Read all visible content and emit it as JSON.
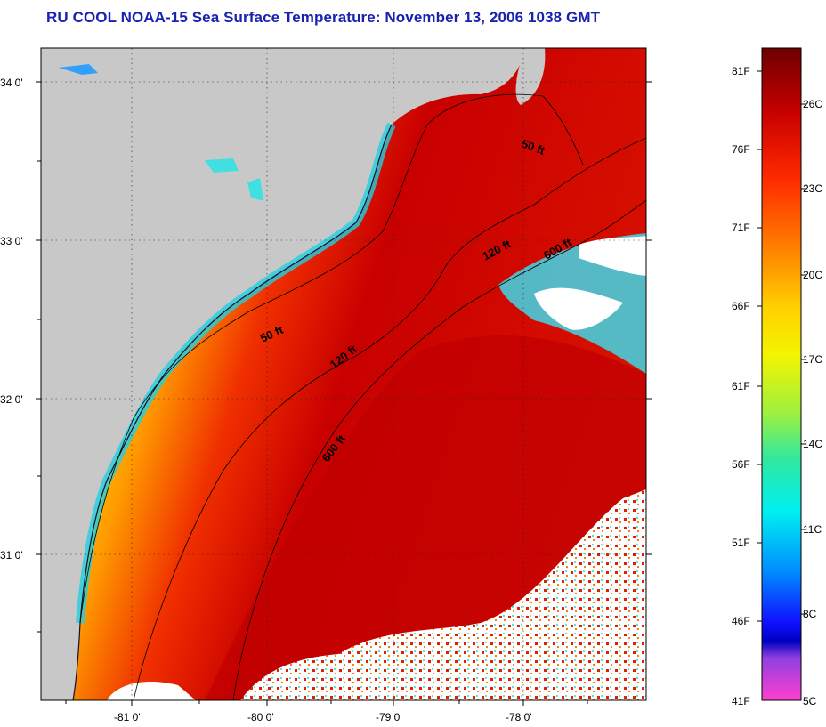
{
  "title": "RU COOL  NOAA-15  Sea Surface Temperature:  November 13, 2006 1038 GMT",
  "map": {
    "lat_ticks": [
      "34 0'",
      "33 0'",
      "32 0'",
      "31 0'"
    ],
    "lon_ticks": [
      "-81 0'",
      "-80 0'",
      "-79 0'",
      "-78 0'"
    ],
    "contour_labels": [
      "50 ft",
      "120 ft",
      "600 ft",
      "50 ft",
      "120 ft",
      "600 ft"
    ],
    "land_color": "#c8c8c8",
    "cloud_color": "#ffffff"
  },
  "colorbar": {
    "fahrenheit_labels": [
      "81F",
      "76F",
      "71F",
      "66F",
      "61F",
      "56F",
      "51F",
      "46F",
      "41F"
    ],
    "celsius_labels": [
      "26C",
      "23C",
      "20C",
      "17C",
      "14C",
      "11C",
      "8C",
      "5C"
    ],
    "colors_top_to_bottom": [
      "#6e0000",
      "#c80000",
      "#ff2a00",
      "#ff7a00",
      "#ffd200",
      "#f4f400",
      "#9ef040",
      "#30e8a0",
      "#00f0f0",
      "#0090ff",
      "#1010ff",
      "#0000c0",
      "#9040e0",
      "#ff40d0"
    ]
  }
}
